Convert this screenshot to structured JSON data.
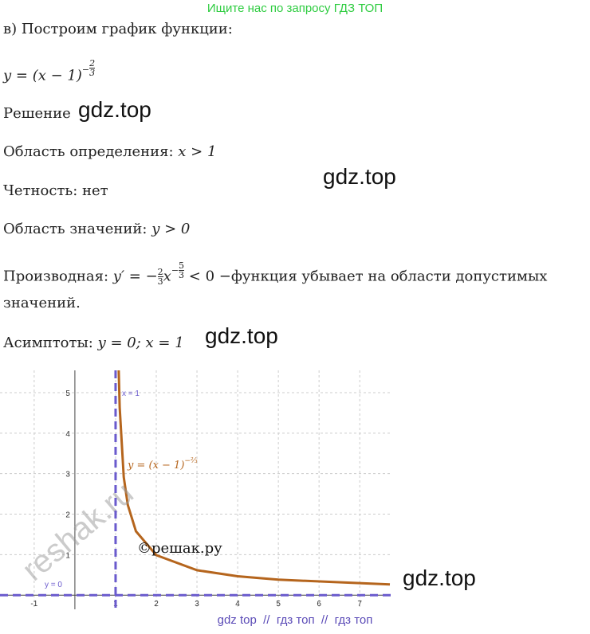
{
  "watermark_top": "Ищите нас по запросу ГДЗ ТОП",
  "intro": "в) Построим график функции:",
  "formula": {
    "base": "y = (x − 1)",
    "exp_sign": "−",
    "exp_num": "2",
    "exp_den": "3"
  },
  "solution": "Решение",
  "domain": {
    "label": "Область определения: ",
    "math": "x > 1"
  },
  "parity": "Четность: нет",
  "range": {
    "label": "Область значений: ",
    "math": "y > 0"
  },
  "derivative": {
    "label": "Производная: ",
    "lhs": "y′ = −",
    "coef_num": "2",
    "coef_den": "3",
    "var": "x",
    "exp_sign": "−",
    "exp_num": "5",
    "exp_den": "3",
    "rhs": " < 0",
    "text": " −функция убывает на области допустимых",
    "text2": "значений."
  },
  "asymptotes": {
    "label": "Асимптоты: ",
    "math": "y = 0; x = 1"
  },
  "watermarks": [
    "gdz.top",
    "gdz.top",
    "gdz.top",
    "gdz.top"
  ],
  "graph": {
    "xlim": [
      -1.84,
      7.76
    ],
    "ylim": [
      -0.35,
      5.55
    ],
    "xticks": [
      -1,
      1,
      2,
      3,
      4,
      5,
      6,
      7
    ],
    "yticks": [
      1,
      2,
      3,
      4,
      5
    ],
    "asymptote_x_label": "x = 1",
    "asymptote_y_label": "y = 0",
    "curve_label": "y = (x − 1)",
    "curve_label_exp": "−⅔",
    "copyright": "©решак.ру",
    "stamp": "reshak.ru"
  },
  "footer": "gdz top  //  гдз топ  //  гдз топ"
}
